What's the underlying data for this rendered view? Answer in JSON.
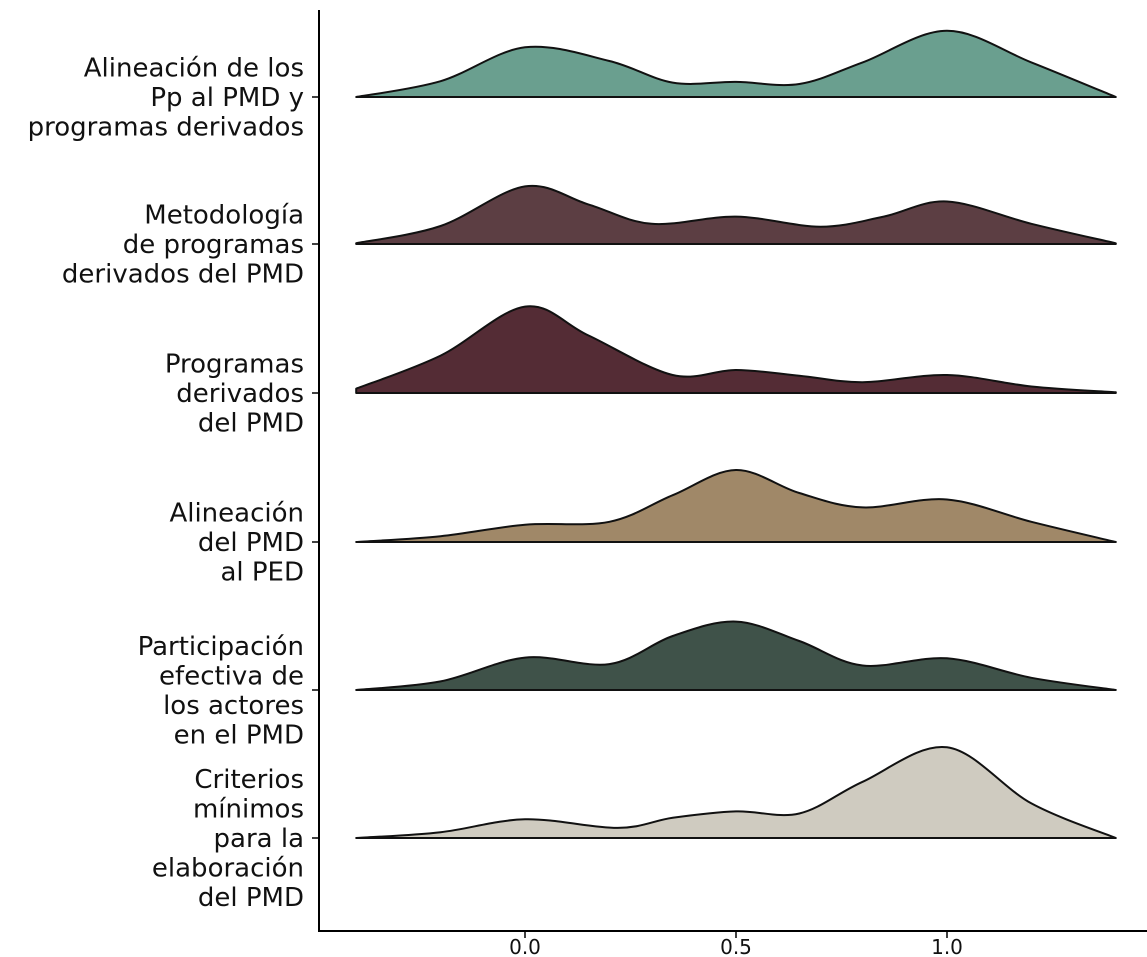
{
  "chart_data": {
    "type": "ridgeline",
    "x_ticks": [
      0.0,
      0.5,
      1.0
    ],
    "x_tick_labels": [
      "0.0",
      "0.5",
      "1.0"
    ],
    "xlim": [
      -0.4,
      1.4
    ],
    "xlabel": "",
    "ylabel": "",
    "title": "",
    "grid": false,
    "series": [
      {
        "label_lines": [
          "Alineación de los",
          "Pp al PMD y",
          "programas derivados"
        ],
        "color": "#6a9f8f",
        "points": [
          [
            -0.4,
            0.0
          ],
          [
            -0.2,
            0.22
          ],
          [
            0.0,
            0.69
          ],
          [
            0.2,
            0.5
          ],
          [
            0.35,
            0.2
          ],
          [
            0.5,
            0.21
          ],
          [
            0.65,
            0.18
          ],
          [
            0.8,
            0.48
          ],
          [
            1.0,
            0.92
          ],
          [
            1.2,
            0.48
          ],
          [
            1.4,
            0.0
          ]
        ]
      },
      {
        "label_lines": [
          "Metodología",
          "de programas",
          "derivados del PMD"
        ],
        "color": "#5c3e43",
        "points": [
          [
            -0.4,
            0.01
          ],
          [
            -0.2,
            0.25
          ],
          [
            0.0,
            0.8
          ],
          [
            0.15,
            0.55
          ],
          [
            0.3,
            0.28
          ],
          [
            0.5,
            0.38
          ],
          [
            0.7,
            0.24
          ],
          [
            0.85,
            0.38
          ],
          [
            1.0,
            0.59
          ],
          [
            1.2,
            0.28
          ],
          [
            1.4,
            0.01
          ]
        ]
      },
      {
        "label_lines": [
          "Programas",
          "derivados",
          "del PMD"
        ],
        "color": "#542c35",
        "points": [
          [
            -0.4,
            0.06
          ],
          [
            -0.2,
            0.52
          ],
          [
            0.0,
            1.2
          ],
          [
            0.15,
            0.8
          ],
          [
            0.35,
            0.25
          ],
          [
            0.5,
            0.32
          ],
          [
            0.65,
            0.24
          ],
          [
            0.8,
            0.15
          ],
          [
            1.0,
            0.25
          ],
          [
            1.2,
            0.09
          ],
          [
            1.4,
            0.01
          ]
        ]
      },
      {
        "label_lines": [
          "Alineación",
          "del PMD",
          "al PED"
        ],
        "color": "#a08868",
        "points": [
          [
            -0.4,
            0.0
          ],
          [
            -0.2,
            0.08
          ],
          [
            0.0,
            0.24
          ],
          [
            0.2,
            0.28
          ],
          [
            0.35,
            0.65
          ],
          [
            0.5,
            1.0
          ],
          [
            0.65,
            0.68
          ],
          [
            0.8,
            0.48
          ],
          [
            1.0,
            0.59
          ],
          [
            1.2,
            0.28
          ],
          [
            1.4,
            0.0
          ]
        ]
      },
      {
        "label_lines": [
          "Participación",
          "efectiva de",
          "los actores",
          "en el PMD"
        ],
        "color": "#3f5249",
        "points": [
          [
            -0.4,
            0.0
          ],
          [
            -0.2,
            0.12
          ],
          [
            0.0,
            0.45
          ],
          [
            0.2,
            0.36
          ],
          [
            0.35,
            0.75
          ],
          [
            0.5,
            0.95
          ],
          [
            0.65,
            0.68
          ],
          [
            0.8,
            0.34
          ],
          [
            1.0,
            0.44
          ],
          [
            1.2,
            0.17
          ],
          [
            1.4,
            0.0
          ]
        ]
      },
      {
        "label_lines": [
          "Criterios",
          "mínimos",
          "para la",
          "elaboración",
          "del PMD"
        ],
        "color": "#cfcbc0",
        "points": [
          [
            -0.4,
            0.0
          ],
          [
            -0.2,
            0.08
          ],
          [
            0.0,
            0.26
          ],
          [
            0.22,
            0.14
          ],
          [
            0.35,
            0.28
          ],
          [
            0.5,
            0.37
          ],
          [
            0.65,
            0.34
          ],
          [
            0.8,
            0.78
          ],
          [
            1.0,
            1.26
          ],
          [
            1.2,
            0.48
          ],
          [
            1.4,
            0.0
          ]
        ]
      }
    ]
  }
}
